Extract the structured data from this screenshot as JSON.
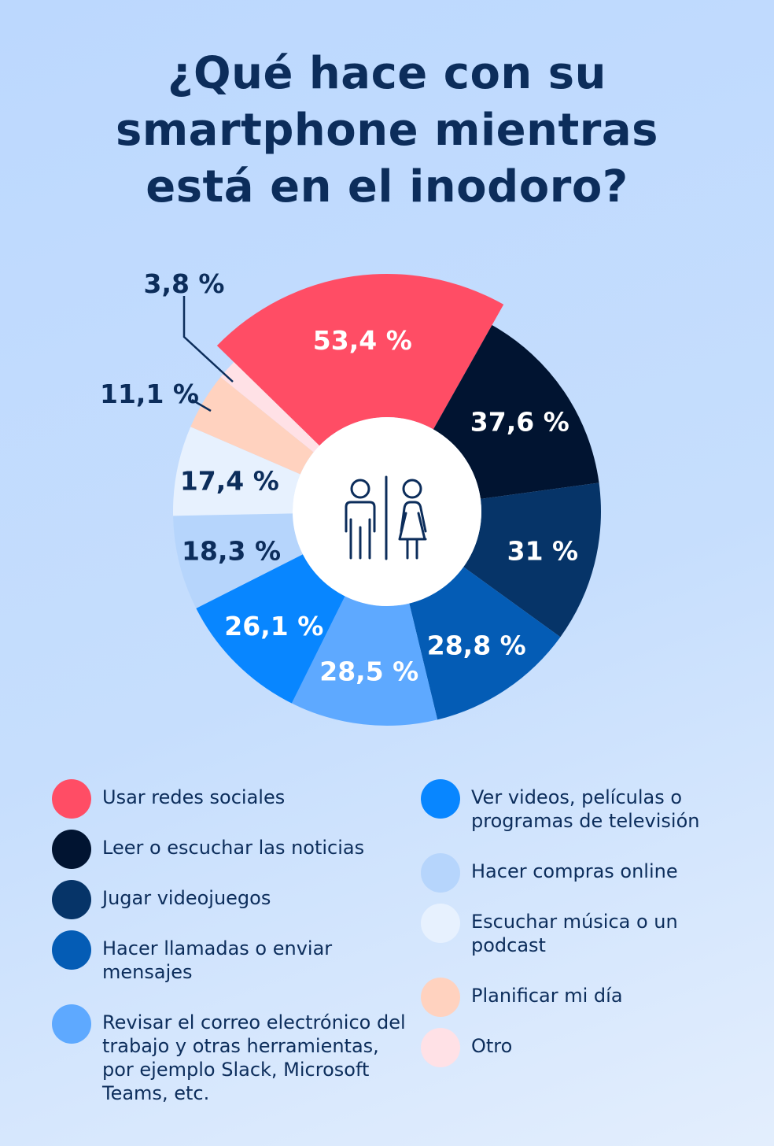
{
  "title_lines": [
    "¿Qué hace con su",
    "smartphone mientras",
    "está en el inodoro?"
  ],
  "chart_data": {
    "type": "pie",
    "variant": "donut with variable outer radius",
    "title": "¿Qué hace con su smartphone mientras está en el inodoro?",
    "center_icon": "restroom-man-woman-icon",
    "slices": [
      {
        "label": "Usar redes sociales",
        "value": 53.4,
        "value_label": "53,4 %",
        "color": "#ff4d65",
        "text_color": "#ffffff"
      },
      {
        "label": "Leer o escuchar las noticias",
        "value": 37.6,
        "value_label": "37,6 %",
        "color": "#011431",
        "text_color": "#ffffff"
      },
      {
        "label": "Jugar videojuegos",
        "value": 31,
        "value_label": "31 %",
        "color": "#063468",
        "text_color": "#ffffff"
      },
      {
        "label": "Hacer llamadas o enviar mensajes",
        "value": 28.8,
        "value_label": "28,8 %",
        "color": "#045cb5",
        "text_color": "#ffffff"
      },
      {
        "label": "Revisar el correo electrónico del trabajo y otras herramientas, por ejemplo Slack, Microsoft Teams, etc.",
        "value": 28.5,
        "value_label": "28,5 %",
        "color": "#5ea9ff",
        "text_color": "#ffffff"
      },
      {
        "label": "Ver videos, películas o programas de televisión",
        "value": 26.1,
        "value_label": "26,1 %",
        "color": "#0886ff",
        "text_color": "#ffffff"
      },
      {
        "label": "Hacer compras online",
        "value": 18.3,
        "value_label": "18,3 %",
        "color": "#b6d5fc",
        "text_color": "#0c2d5b"
      },
      {
        "label": "Escuchar música o un podcast",
        "value": 17.4,
        "value_label": "17,4 %",
        "color": "#e7f1fe",
        "text_color": "#0c2d5b"
      },
      {
        "label": "Planificar mi día",
        "value": 11.1,
        "value_label": "11,1 %",
        "color": "#ffd2bf",
        "text_color": "#0c2d5b"
      },
      {
        "label": "Otro",
        "value": 3.8,
        "value_label": "3,8 %",
        "color": "#ffe1e6",
        "text_color": "#0c2d5b"
      }
    ]
  },
  "legend": {
    "left": [
      0,
      1,
      2,
      3,
      4
    ],
    "right": [
      5,
      6,
      7,
      8,
      9
    ]
  }
}
